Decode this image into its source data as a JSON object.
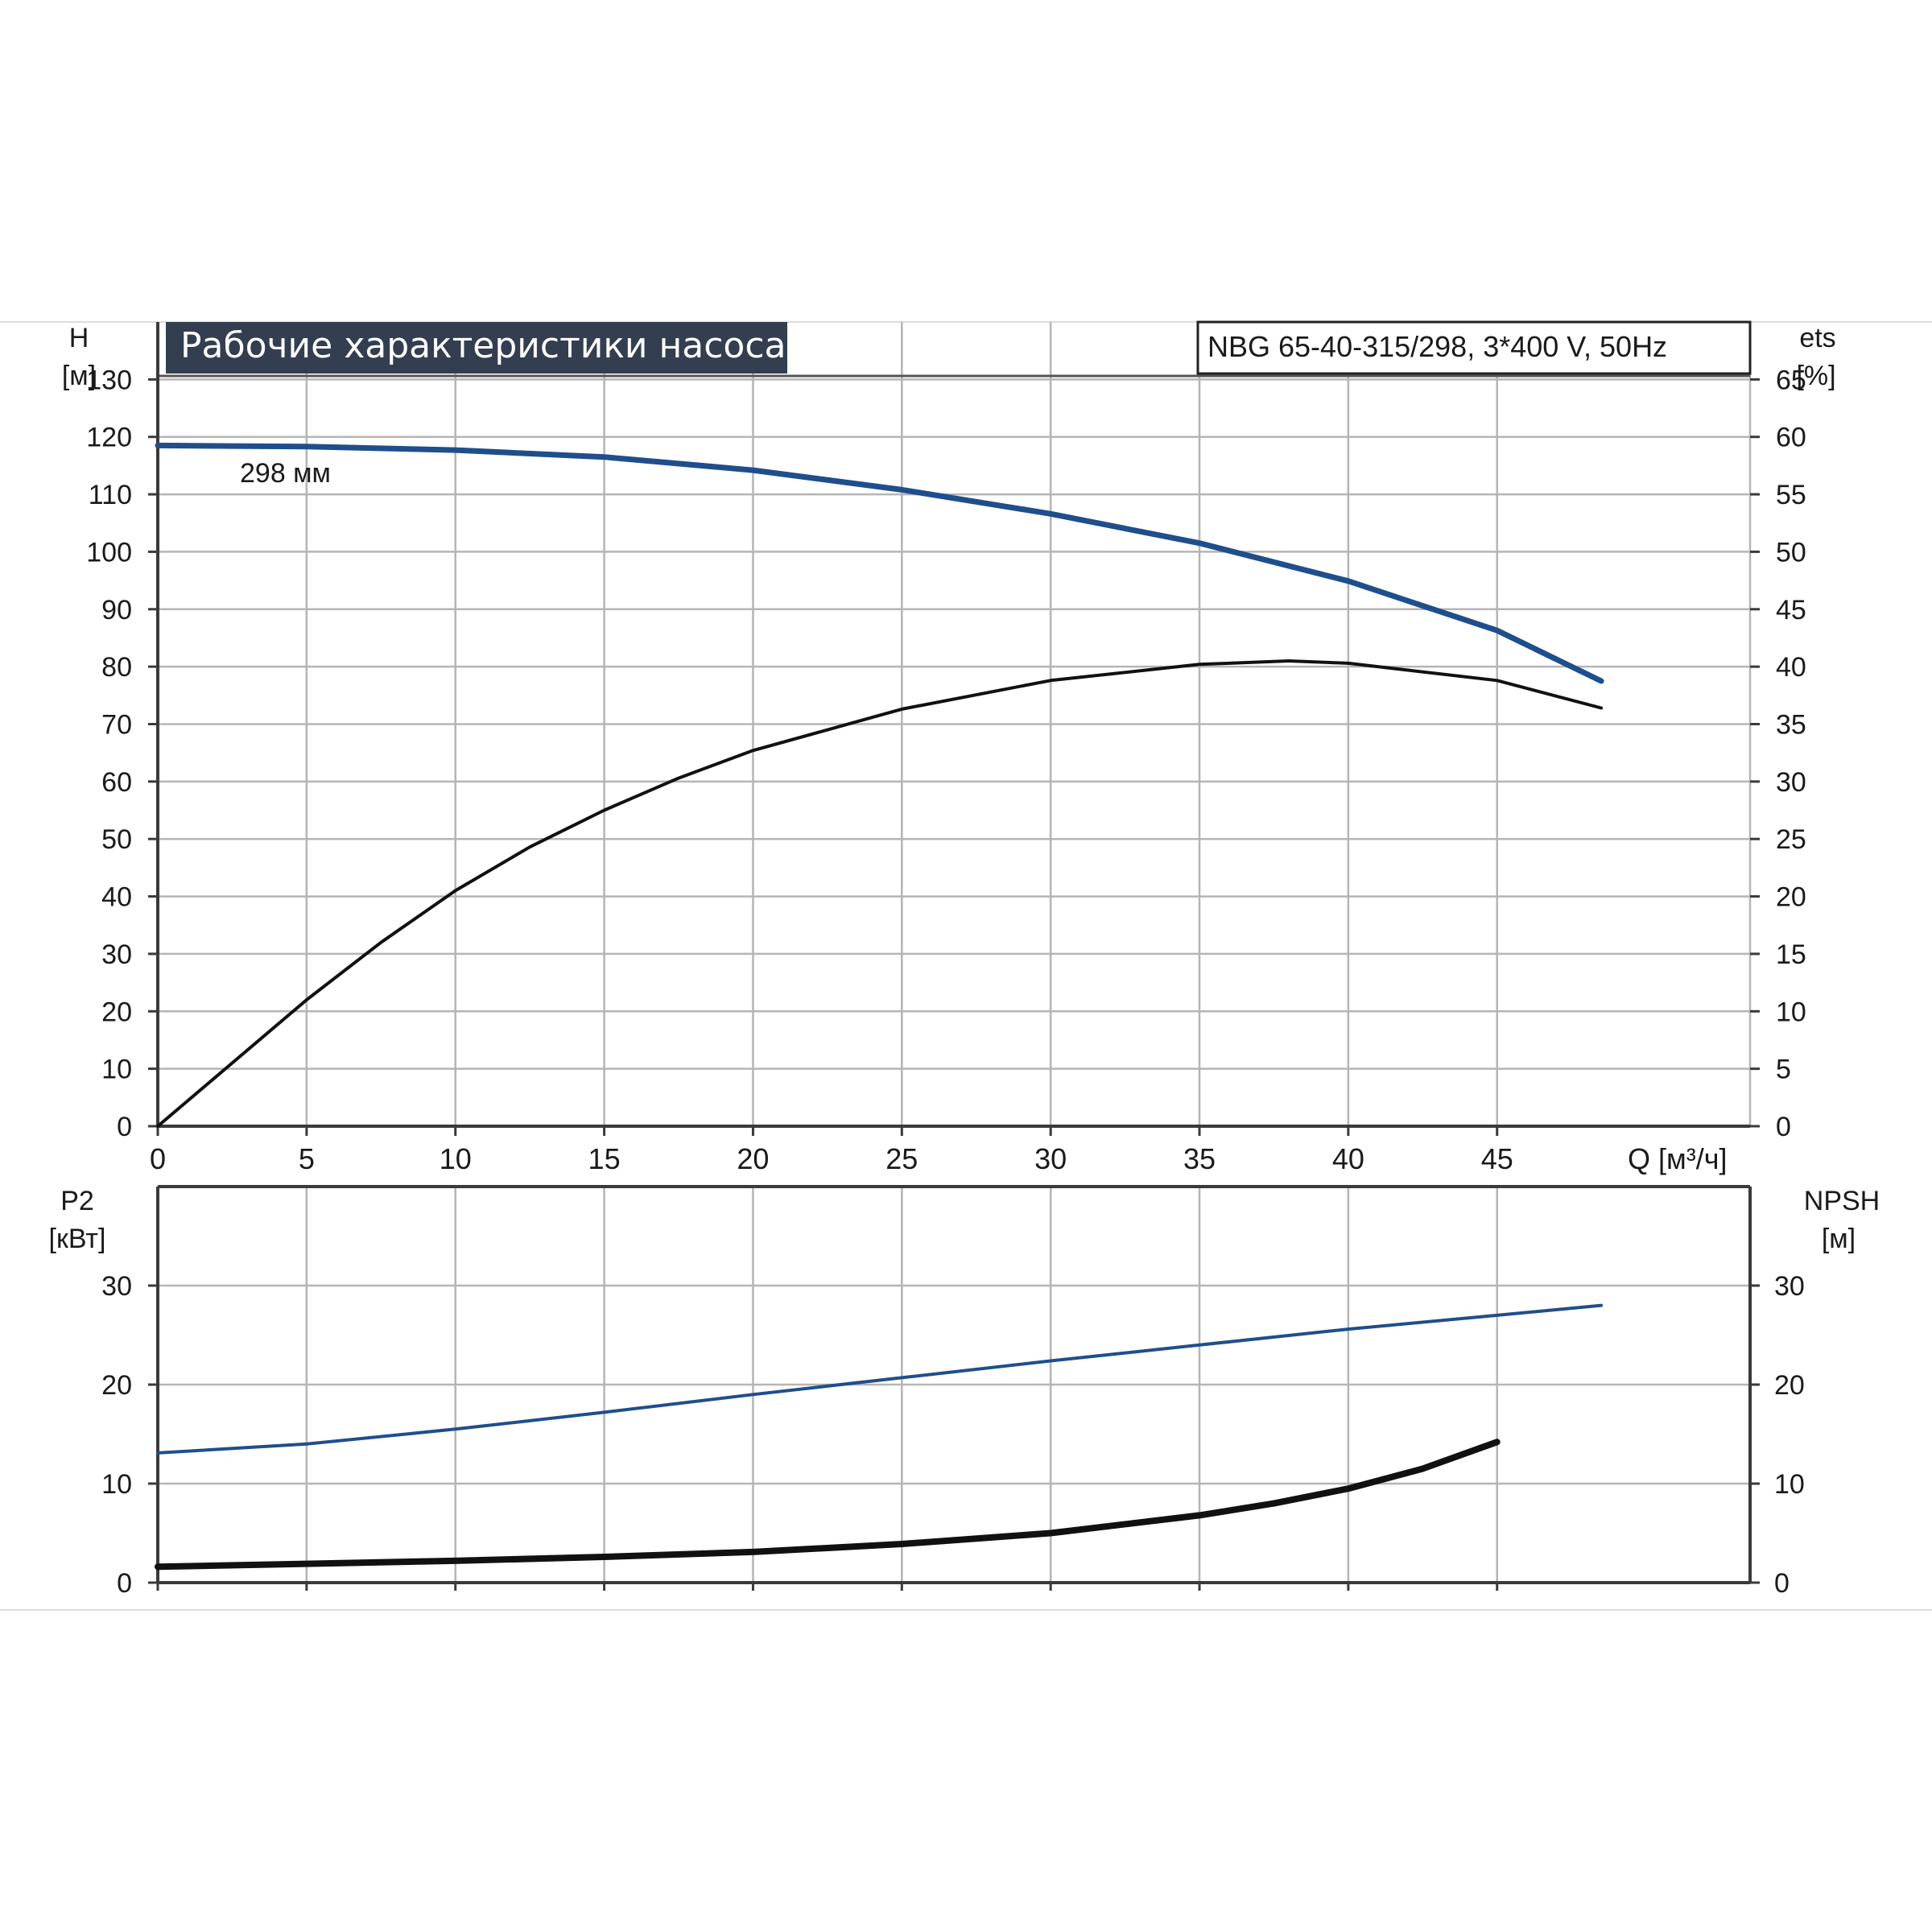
{
  "chart_data": [
    {
      "type": "line",
      "panel": "head-efficiency",
      "title": "Рабочие характеристики насоса",
      "model": "NBG 65-40-315/298, 3*400 V, 50Hz",
      "xlabel": "Q [м³/ч]",
      "ylabel_left": [
        "H",
        "[м]"
      ],
      "ylabel_right": [
        "ets",
        "[%]"
      ],
      "x_ticks": [
        0,
        5,
        10,
        15,
        20,
        25,
        30,
        35,
        40,
        45
      ],
      "y_left_ticks": [
        0,
        10,
        20,
        30,
        40,
        50,
        60,
        70,
        80,
        90,
        100,
        110,
        120,
        130
      ],
      "y_right_ticks": [
        0,
        5,
        10,
        15,
        20,
        25,
        30,
        35,
        40,
        45,
        50,
        55,
        60,
        65
      ],
      "xlim": [
        0,
        53.5
      ],
      "ylim_left": [
        0,
        140
      ],
      "ylim_right": [
        0,
        70
      ],
      "grid": true,
      "series": [
        {
          "name": "298 мм",
          "axis": "left",
          "color": "#1f4e8c",
          "x": [
            0,
            5,
            10,
            15,
            20,
            25,
            30,
            35,
            40,
            45,
            48.5
          ],
          "y": [
            118.5,
            118.3,
            117.7,
            116.5,
            114.2,
            110.8,
            106.6,
            101.5,
            94.9,
            86.3,
            77.5
          ]
        },
        {
          "axis": "right",
          "color": "#111111",
          "x": [
            0,
            5,
            7.5,
            10,
            12.5,
            15,
            17.5,
            20,
            25,
            30,
            35,
            38,
            40,
            45,
            48.5
          ],
          "y": [
            0,
            11,
            16,
            20.5,
            24.3,
            27.5,
            30.3,
            32.7,
            36.3,
            38.8,
            40.2,
            40.5,
            40.3,
            38.8,
            36.4
          ]
        }
      ]
    },
    {
      "type": "line",
      "panel": "power-npsh",
      "xlabel": "",
      "ylabel_left": [
        "P2",
        "[кВт]"
      ],
      "ylabel_right": [
        "NPSH",
        "[м]"
      ],
      "y_left_ticks": [
        0,
        10,
        20,
        30
      ],
      "y_right_ticks": [
        0,
        10,
        20,
        30
      ],
      "xlim": [
        0,
        53.5
      ],
      "ylim_left": [
        0,
        40
      ],
      "ylim_right": [
        0,
        40
      ],
      "grid": true,
      "series": [
        {
          "axis": "left",
          "color": "#1f4e8c",
          "x": [
            0,
            5,
            10,
            15,
            20,
            25,
            30,
            35,
            40,
            45,
            48.5
          ],
          "y": [
            13.1,
            14.0,
            15.5,
            17.2,
            19.0,
            20.7,
            22.4,
            24.0,
            25.6,
            27.0,
            28.0
          ]
        },
        {
          "axis": "right",
          "color": "#111111",
          "x": [
            0,
            5,
            10,
            15,
            20,
            25,
            30,
            35,
            37.5,
            40,
            42.5,
            45
          ],
          "y": [
            1.6,
            1.9,
            2.2,
            2.6,
            3.1,
            3.9,
            5.0,
            6.8,
            8.0,
            9.5,
            11.5,
            14.2
          ]
        }
      ]
    }
  ]
}
